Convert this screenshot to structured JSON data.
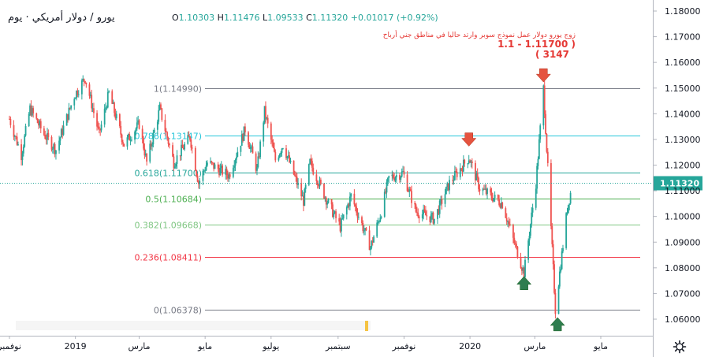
{
  "header": {
    "title": "يورو / دولار أمريكي · يوم",
    "open_label": "O",
    "open": "1.10303",
    "high_label": "H",
    "high": "1.11476",
    "low_label": "L",
    "low": "1.09533",
    "close_label": "C",
    "close": "1.11320",
    "change": "+0.01017 (+0.92%)"
  },
  "annotation": {
    "line1": "زوج يورو دولار عمل نموذج سوبر وارتد حاليا في مناطق جني أرباح",
    "line2": "1.1 - 1.11700 )",
    "line3": "( 3147"
  },
  "colors": {
    "up": "#26a69a",
    "down": "#ef5350",
    "last_price": "#2962ff",
    "fib_1": "#787b86",
    "fib_786": "#26c6da",
    "fib_618": "#26a69a",
    "fib_5": "#4caf50",
    "fib_382": "#81c784",
    "fib_236": "#f23645",
    "fib_0": "#787b86"
  },
  "icons": [
    "down-arrow-marker-icon",
    "up-arrow-marker-icon",
    "gear-icon"
  ],
  "chart_data": {
    "type": "candlestick",
    "instrument": "EUR/USD",
    "timeframe": "1D",
    "x_range": [
      "2018-11-01",
      "2020-06-10"
    ],
    "ylim": [
      1.056,
      1.1815
    ],
    "y_ticks": [
      "1.18000",
      "1.17000",
      "1.16000",
      "1.15000",
      "1.14000",
      "1.13000",
      "1.12000",
      "1.11000",
      "1.10000",
      "1.09000",
      "1.08000",
      "1.07000",
      "1.06000"
    ],
    "y_tick_values": [
      1.18,
      1.17,
      1.16,
      1.15,
      1.14,
      1.13,
      1.12,
      1.11,
      1.1,
      1.09,
      1.08,
      1.07,
      1.06
    ],
    "x_ticks": [
      {
        "label": "نوفمبر",
        "date": "2018-11-01"
      },
      {
        "label": "2019",
        "date": "2019-01-01"
      },
      {
        "label": "مارس",
        "date": "2019-03-01"
      },
      {
        "label": "مايو",
        "date": "2019-05-01"
      },
      {
        "label": "يوليو",
        "date": "2019-07-01"
      },
      {
        "label": "سبتمبر",
        "date": "2019-09-01"
      },
      {
        "label": "نوفمبر",
        "date": "2019-11-01"
      },
      {
        "label": "2020",
        "date": "2020-01-01"
      },
      {
        "label": "مارس",
        "date": "2020-03-01"
      },
      {
        "label": "مايو",
        "date": "2020-05-01"
      }
    ],
    "last_price": {
      "value": 1.1132,
      "label": "1.11320"
    },
    "fib_levels": [
      {
        "ratio": "1",
        "value": 1.1499,
        "label": "1(1.14990)",
        "color": "#787b86"
      },
      {
        "ratio": "0.786",
        "value": 1.13147,
        "label": "0.786(1.13147)",
        "color": "#26c6da"
      },
      {
        "ratio": "0.618",
        "value": 1.117,
        "label": "0.618(1.11700)",
        "color": "#26a69a"
      },
      {
        "ratio": "0.5",
        "value": 1.10684,
        "label": "0.5(1.10684)",
        "color": "#4caf50"
      },
      {
        "ratio": "0.382",
        "value": 1.09668,
        "label": "0.382(1.09668)",
        "color": "#81c784"
      },
      {
        "ratio": "0.236",
        "value": 1.08411,
        "label": "0.236(1.08411)",
        "color": "#f23645"
      },
      {
        "ratio": "0",
        "value": 1.06378,
        "label": "0(1.06378)",
        "color": "#787b86"
      }
    ],
    "markers": [
      {
        "type": "down",
        "date": "2019-12-31",
        "value": 1.1295
      },
      {
        "type": "down",
        "date": "2020-03-09",
        "value": 1.1545
      },
      {
        "type": "up",
        "date": "2020-02-20",
        "value": 1.0745
      },
      {
        "type": "up",
        "date": "2020-03-22",
        "value": 1.0585
      }
    ],
    "price_path": [
      [
        "2018-11-01",
        1.138
      ],
      [
        "2018-11-12",
        1.124
      ],
      [
        "2018-11-20",
        1.142
      ],
      [
        "2018-12-03",
        1.132
      ],
      [
        "2018-12-14",
        1.126
      ],
      [
        "2018-12-31",
        1.147
      ],
      [
        "2019-01-10",
        1.154
      ],
      [
        "2019-01-23",
        1.132
      ],
      [
        "2019-02-01",
        1.148
      ],
      [
        "2019-02-15",
        1.128
      ],
      [
        "2019-03-01",
        1.136
      ],
      [
        "2019-03-08",
        1.121
      ],
      [
        "2019-03-20",
        1.142
      ],
      [
        "2019-04-02",
        1.121
      ],
      [
        "2019-04-17",
        1.131
      ],
      [
        "2019-04-25",
        1.113
      ],
      [
        "2019-05-03",
        1.121
      ],
      [
        "2019-05-23",
        1.116
      ],
      [
        "2019-06-07",
        1.134
      ],
      [
        "2019-06-18",
        1.118
      ],
      [
        "2019-06-25",
        1.141
      ],
      [
        "2019-07-05",
        1.122
      ],
      [
        "2019-07-12",
        1.128
      ],
      [
        "2019-07-31",
        1.106
      ],
      [
        "2019-08-06",
        1.121
      ],
      [
        "2019-08-23",
        1.105
      ],
      [
        "2019-09-03",
        1.096
      ],
      [
        "2019-09-13",
        1.108
      ],
      [
        "2019-10-01",
        1.088
      ],
      [
        "2019-10-11",
        1.102
      ],
      [
        "2019-10-18",
        1.115
      ],
      [
        "2019-10-31",
        1.117
      ],
      [
        "2019-11-12",
        1.102
      ],
      [
        "2019-11-29",
        1.099
      ],
      [
        "2019-12-13",
        1.113
      ],
      [
        "2019-12-31",
        1.123
      ],
      [
        "2020-01-10",
        1.111
      ],
      [
        "2020-01-17",
        1.109
      ],
      [
        "2020-01-31",
        1.105
      ],
      [
        "2020-02-10",
        1.091
      ],
      [
        "2020-02-20",
        1.078
      ],
      [
        "2020-03-02",
        1.113
      ],
      [
        "2020-03-09",
        1.1499
      ],
      [
        "2020-03-20",
        1.0638
      ],
      [
        "2020-03-31",
        1.103
      ],
      [
        "2020-04-05",
        1.1132
      ]
    ]
  }
}
